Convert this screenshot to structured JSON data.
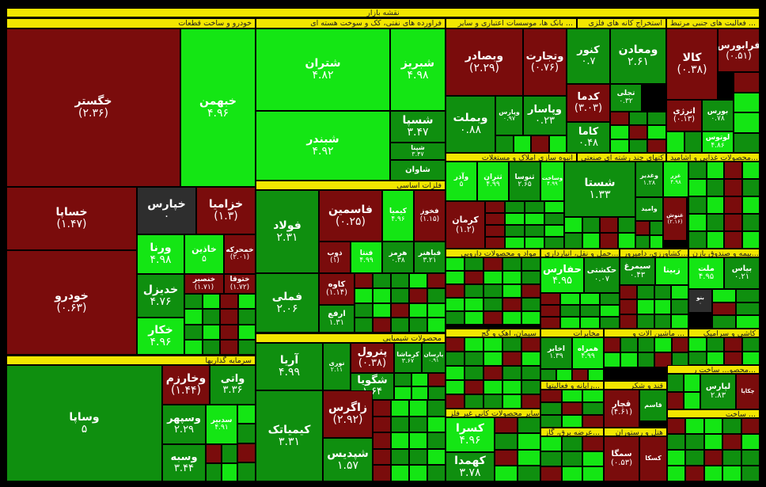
{
  "title": "نقشه بازار",
  "colors": {
    "strong_up": "#14e614",
    "up": "#0f8f0f",
    "down": "#7a0c0c",
    "neutral": "#2e2e2e",
    "header": "#f2e600"
  },
  "sectors": [
    "خودرو و ساخت قطعات",
    "فرآورده های نفتی، کک و سوخت هسته ای",
    "بانک ها، موسسات اعتباری و سایر ...",
    "استخراج کانه های فلزی",
    "فعالیت های جنبی مرتبط ...",
    "فلزات اساسی",
    "انبوه سازی املاک و مستغلات",
    "شرکتهای چند رشته ای صنعتی",
    "محصولات غذایی و آشامید...",
    "مواد و محصولات دارویی",
    "محصولات شیمیایی",
    "سرمایه گذاریها",
    "بیمه و صندوق بازن...",
    "حمل و نقل، انبارداری...",
    "کشاورزی، دامپرور...",
    "ماشین آلات و ...",
    "سیمان، آهک و گچ",
    "مخابرات",
    "رایانه و فعالیتها...",
    "قند و شکر",
    "سایر محصولات کانی غیر فلز...",
    "عرضه برق، گاز...",
    "هتل و رستوران",
    "محصو... ساخت ر...",
    "ساخت ...",
    "کاشی و سرامیک"
  ],
  "tiles": [
    {
      "name": "خگستر",
      "value": "(۲.۳۶)",
      "s": "down"
    },
    {
      "name": "خبهمن",
      "value": "۴.۹۶",
      "s": "strong_up"
    },
    {
      "name": "خساپا",
      "value": "(۱.۴۷)",
      "s": "down"
    },
    {
      "name": "خپارس",
      "value": "۰",
      "s": "neutral"
    },
    {
      "name": "خزامیا",
      "value": "(۱.۳)",
      "s": "down"
    },
    {
      "name": "ورنا",
      "value": "۴.۹۸",
      "s": "strong_up"
    },
    {
      "name": "خاذین",
      "value": "۵",
      "s": "strong_up"
    },
    {
      "name": "خمحرکه",
      "value": "(۲.۰۱)",
      "s": "down"
    },
    {
      "name": "خودرو",
      "value": "(۰.۶۳)",
      "s": "down"
    },
    {
      "name": "خدیزل",
      "value": "۴.۷۶",
      "s": "up"
    },
    {
      "name": "خکار",
      "value": "۴.۹۶",
      "s": "strong_up"
    },
    {
      "name": "خنصیر",
      "value": "(۱.۷۱)",
      "s": "down"
    },
    {
      "name": "ختوقا",
      "value": "(۱.۷۲)",
      "s": "down"
    },
    {
      "name": "شتران",
      "value": "۴.۸۲",
      "s": "strong_up"
    },
    {
      "name": "شبریز",
      "value": "۴.۹۸",
      "s": "strong_up"
    },
    {
      "name": "شبندر",
      "value": "۴.۹۲",
      "s": "strong_up"
    },
    {
      "name": "شسپا",
      "value": "۳.۴۷",
      "s": "up"
    },
    {
      "name": "شپنا",
      "value": "۳.۴۷",
      "s": "up"
    },
    {
      "name": "شاوان",
      "value": "",
      "s": "up"
    },
    {
      "name": "وبصادر",
      "value": "(۲.۲۹)",
      "s": "down"
    },
    {
      "name": "وتجارت",
      "value": "(۰.۷۶)",
      "s": "down"
    },
    {
      "name": "کنور",
      "value": "۰.۷",
      "s": "up"
    },
    {
      "name": "ومعادن",
      "value": "۲.۶۱",
      "s": "up"
    },
    {
      "name": "کالا",
      "value": "(۰.۳۸)",
      "s": "down"
    },
    {
      "name": "فرابورس",
      "value": "(۰.۵۱)",
      "s": "down"
    },
    {
      "name": "وبملت",
      "value": "۰.۸۸",
      "s": "up"
    },
    {
      "name": "وپارس",
      "value": "۰.۹۷",
      "s": "up"
    },
    {
      "name": "وپاسار",
      "value": "۰.۲۳",
      "s": "up"
    },
    {
      "name": "کدما",
      "value": "(۳.۰۳)",
      "s": "down"
    },
    {
      "name": "تجلی",
      "value": "۰.۳۲",
      "s": "up"
    },
    {
      "name": "انرژی",
      "value": "(۰.۱۳)",
      "s": "down"
    },
    {
      "name": "بورس",
      "value": "۰.۷۸",
      "s": "up"
    },
    {
      "name": "کاما",
      "value": "۰.۴۸",
      "s": "up"
    },
    {
      "name": "لوتوس",
      "value": "۴.۸۶",
      "s": "strong_up"
    },
    {
      "name": "فولاد",
      "value": "۲.۳۱",
      "s": "up"
    },
    {
      "name": "فاسمین",
      "value": "(۰.۲۵)",
      "s": "down"
    },
    {
      "name": "کیمیا",
      "value": "۴.۹۶",
      "s": "strong_up"
    },
    {
      "name": "فخوز",
      "value": "(۱.۱۵)",
      "s": "down"
    },
    {
      "name": "فملی",
      "value": "۲.۰۶",
      "s": "up"
    },
    {
      "name": "ذوب",
      "value": "(۱)",
      "s": "down"
    },
    {
      "name": "فنتا",
      "value": "۴.۹۹",
      "s": "strong_up"
    },
    {
      "name": "هرمز",
      "value": "۰.۳۸",
      "s": "up"
    },
    {
      "name": "فباهنر",
      "value": "۳.۲۱",
      "s": "up"
    },
    {
      "name": "کاوه",
      "value": "(۱.۱۴)",
      "s": "down"
    },
    {
      "name": "ارفع",
      "value": "۱.۳۱",
      "s": "up"
    },
    {
      "name": "وآذر",
      "value": "۵",
      "s": "strong_up"
    },
    {
      "name": "ثتران",
      "value": "۴.۹۹",
      "s": "strong_up"
    },
    {
      "name": "ثنوسا",
      "value": "۲.۶۵",
      "s": "up"
    },
    {
      "name": "وساخت",
      "value": "۴.۹۹",
      "s": "strong_up"
    },
    {
      "name": "کرمان",
      "value": "(۱.۲)",
      "s": "down"
    },
    {
      "name": "شستا",
      "value": "۱.۳۳",
      "s": "up"
    },
    {
      "name": "وغدیر",
      "value": "۱.۲۸",
      "s": "up"
    },
    {
      "name": "غزر",
      "value": "۴.۹۸",
      "s": "strong_up"
    },
    {
      "name": "وامید",
      "value": "",
      "s": "up"
    },
    {
      "name": "غنوش",
      "value": "(۲.۱۶)",
      "s": "down"
    },
    {
      "name": "حفارس",
      "value": "۴.۹۵",
      "s": "strong_up"
    },
    {
      "name": "حکشتی",
      "value": "۰.۰۷",
      "s": "up"
    },
    {
      "name": "سیمرغ",
      "value": "۰.۴۳",
      "s": "up"
    },
    {
      "name": "زبینا",
      "value": "",
      "s": "strong_up"
    },
    {
      "name": "ملت",
      "value": "۴.۹۵",
      "s": "strong_up"
    },
    {
      "name": "بیاس",
      "value": "۰.۲۱",
      "s": "up"
    },
    {
      "name": "بنو",
      "value": "۰",
      "s": "neutral"
    },
    {
      "name": "آریا",
      "value": "۴.۹۹",
      "s": "up"
    },
    {
      "name": "نوری",
      "value": "۲.۱۱",
      "s": "up"
    },
    {
      "name": "پترول",
      "value": "(۰.۳۸)",
      "s": "down"
    },
    {
      "name": "کرماشا",
      "value": "۳.۶۷",
      "s": "up"
    },
    {
      "name": "پارسان",
      "value": "۰.۹۱",
      "s": "up"
    },
    {
      "name": "شگویا",
      "value": "۱.۶۴",
      "s": "up"
    },
    {
      "name": "زاگرس",
      "value": "(۲.۹۲)",
      "s": "down"
    },
    {
      "name": "کیمیاتک",
      "value": "۳.۳۱",
      "s": "up"
    },
    {
      "name": "شپدیس",
      "value": "۱.۵۷",
      "s": "up"
    },
    {
      "name": "وساپا",
      "value": "۵",
      "s": "up"
    },
    {
      "name": "وخارزم",
      "value": "(۱.۴۴)",
      "s": "down"
    },
    {
      "name": "واتی",
      "value": "۳.۳۶",
      "s": "up"
    },
    {
      "name": "وسپهر",
      "value": "۲.۲۹",
      "s": "up"
    },
    {
      "name": "سدبیر",
      "value": "۴.۹۱",
      "s": "strong_up"
    },
    {
      "name": "وسبه",
      "value": "۳.۴۴",
      "s": "up"
    },
    {
      "name": "اخابر",
      "value": "۱.۳۹",
      "s": "up"
    },
    {
      "name": "همراه",
      "value": "۴.۹۹",
      "s": "strong_up"
    },
    {
      "name": "کسرا",
      "value": "۴.۹۶",
      "s": "strong_up"
    },
    {
      "name": "کهمدا",
      "value": "۳.۷۸",
      "s": "up"
    },
    {
      "name": "قچار",
      "value": "(۴.۶۱)",
      "s": "down"
    },
    {
      "name": "قاسم",
      "value": "",
      "s": "up"
    },
    {
      "name": "لپارس",
      "value": "۲.۸۳",
      "s": "up"
    },
    {
      "name": "چکاپا",
      "value": "",
      "s": "down"
    },
    {
      "name": "سمگا",
      "value": "(۰.۵۳)",
      "s": "down"
    },
    {
      "name": "کسکا",
      "value": "",
      "s": "down"
    }
  ]
}
